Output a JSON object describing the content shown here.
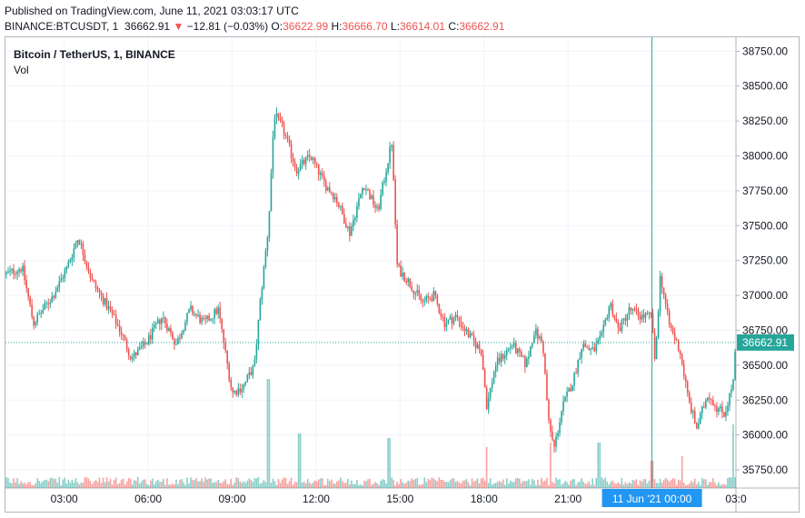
{
  "header": {
    "published": "Published on TradingView.com, June 11, 2021 03:03:17 UTC",
    "symbol_line": "BINANCE:BTCUSDT, 1",
    "last": "36662.91",
    "change_arrow": "▼",
    "change": "−12.81 (−0.03%)",
    "o_label": "O:",
    "o": "36622.99",
    "h_label": "H:",
    "h": "36666.70",
    "l_label": "L:",
    "l": "36614.01",
    "c_label": "C:",
    "c": "36662.91"
  },
  "legend": {
    "title": "Bitcoin / TetherUS, 1, BINANCE",
    "volume": "Vol"
  },
  "colors": {
    "up": "#26a69a",
    "down": "#ef5350",
    "grid": "#f0f3fa",
    "axis_text": "#131722",
    "price_label_bg": "#26a69a",
    "crosshair": "#26a69a",
    "time_label_bg": "#2196f3"
  },
  "chart_data": {
    "type": "candlestick",
    "y_ticks": [
      "38750.00",
      "38500.00",
      "38250.00",
      "38000.00",
      "37750.00",
      "37500.00",
      "37250.00",
      "37000.00",
      "36750.00",
      "36500.00",
      "36250.00",
      "36000.00",
      "35750.00"
    ],
    "y_tick_values": [
      38750,
      38500,
      38250,
      38000,
      37750,
      37500,
      37250,
      37000,
      36750,
      36500,
      36250,
      36000,
      35750
    ],
    "x_ticks": [
      "03:00",
      "06:00",
      "09:00",
      "12:00",
      "15:00",
      "18:00",
      "21:00",
      "03:0"
    ],
    "x_tick_hours": [
      3,
      6,
      9,
      12,
      15,
      18,
      21,
      27
    ],
    "x_range_hours": [
      0.9,
      27.0
    ],
    "ylim": [
      35620,
      38850
    ],
    "last_price": 36662.91,
    "last_price_label": "36662.91",
    "crosshair_time_label": "11 Jun '21   00:00",
    "crosshair_hour": 24,
    "grid": true,
    "price_path": [
      [
        0.9,
        37150
      ],
      [
        1.5,
        37200
      ],
      [
        1.9,
        36800
      ],
      [
        2.6,
        37000
      ],
      [
        3.1,
        37200
      ],
      [
        3.5,
        37420
      ],
      [
        4.0,
        37100
      ],
      [
        4.6,
        36900
      ],
      [
        5.0,
        36750
      ],
      [
        5.4,
        36550
      ],
      [
        5.9,
        36650
      ],
      [
        6.5,
        36850
      ],
      [
        7.0,
        36650
      ],
      [
        7.5,
        36900
      ],
      [
        8.0,
        36800
      ],
      [
        8.5,
        36900
      ],
      [
        9.0,
        36300
      ],
      [
        9.4,
        36350
      ],
      [
        9.8,
        36500
      ],
      [
        10.0,
        36950
      ],
      [
        10.3,
        37500
      ],
      [
        10.5,
        38300
      ],
      [
        10.8,
        38200
      ],
      [
        11.3,
        37900
      ],
      [
        11.8,
        38000
      ],
      [
        12.3,
        37800
      ],
      [
        12.7,
        37700
      ],
      [
        13.2,
        37450
      ],
      [
        13.7,
        37800
      ],
      [
        14.2,
        37600
      ],
      [
        14.5,
        37900
      ],
      [
        14.7,
        38100
      ],
      [
        14.9,
        37200
      ],
      [
        15.3,
        37100
      ],
      [
        15.8,
        36950
      ],
      [
        16.2,
        37000
      ],
      [
        16.6,
        36800
      ],
      [
        17.0,
        36850
      ],
      [
        17.5,
        36700
      ],
      [
        17.9,
        36600
      ],
      [
        18.1,
        36200
      ],
      [
        18.4,
        36500
      ],
      [
        19.0,
        36650
      ],
      [
        19.5,
        36500
      ],
      [
        19.8,
        36750
      ],
      [
        20.1,
        36650
      ],
      [
        20.3,
        36100
      ],
      [
        20.5,
        35900
      ],
      [
        20.8,
        36200
      ],
      [
        21.2,
        36400
      ],
      [
        21.5,
        36650
      ],
      [
        21.9,
        36600
      ],
      [
        22.2,
        36700
      ],
      [
        22.5,
        36950
      ],
      [
        22.8,
        36750
      ],
      [
        23.2,
        36900
      ],
      [
        23.6,
        36850
      ],
      [
        24.0,
        36850
      ],
      [
        24.1,
        36500
      ],
      [
        24.3,
        37150
      ],
      [
        24.6,
        36800
      ],
      [
        25.0,
        36600
      ],
      [
        25.3,
        36250
      ],
      [
        25.6,
        36050
      ],
      [
        26.0,
        36300
      ],
      [
        26.3,
        36200
      ],
      [
        26.6,
        36150
      ],
      [
        26.9,
        36380
      ],
      [
        27.0,
        36662.91
      ]
    ],
    "volume_spikes": [
      [
        10.3,
        120
      ],
      [
        11.4,
        60
      ],
      [
        14.6,
        55
      ],
      [
        18.1,
        45
      ],
      [
        20.4,
        50
      ],
      [
        22.1,
        50
      ],
      [
        24.0,
        30
      ],
      [
        25.1,
        35
      ],
      [
        26.9,
        70
      ]
    ],
    "volume_max": 120
  }
}
